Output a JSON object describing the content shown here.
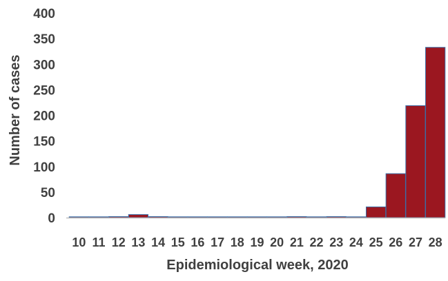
{
  "chart_data": {
    "type": "bar",
    "title": "",
    "xlabel": "Epidemiological week, 2020",
    "ylabel": "Number of cases",
    "categories": [
      "10",
      "11",
      "12",
      "13",
      "14",
      "15",
      "16",
      "17",
      "18",
      "19",
      "20",
      "21",
      "22",
      "23",
      "24",
      "25",
      "26",
      "27",
      "28"
    ],
    "values": [
      0,
      1,
      2,
      6,
      2,
      0,
      0,
      0,
      0,
      0,
      0,
      2,
      1,
      2,
      1,
      21,
      86,
      219,
      333
    ],
    "ylim": [
      0,
      400
    ],
    "yticks": [
      0,
      50,
      100,
      150,
      200,
      250,
      300,
      350,
      400
    ],
    "grid": false,
    "legend": "none",
    "colors": {
      "bar": "#9b1720",
      "bar_edge": "#3a6fa8",
      "axis": "#bfbfbf",
      "text": "#404040"
    }
  }
}
